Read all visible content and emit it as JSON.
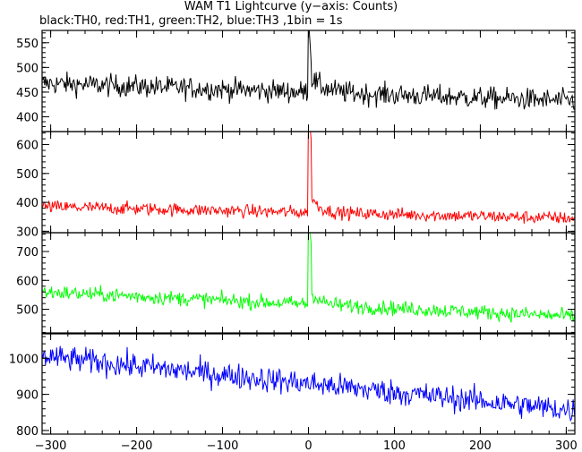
{
  "title": "WAM T1 Lightcurve (y−axis: Counts)",
  "subtitle": "black:TH0, red:TH1, green:TH2, blue:TH3 ,1bin = 1s",
  "chart_data": {
    "type": "line",
    "x_range": [
      -310,
      310
    ],
    "x_ticks": [
      -300,
      -200,
      -100,
      0,
      100,
      200,
      300
    ],
    "x_tick_labels": [
      "−300",
      "−200",
      "−100",
      "0",
      "100",
      "200",
      "300"
    ],
    "bin_seconds": 1,
    "panels": [
      {
        "name": "TH0",
        "color": "#000000",
        "ylim": [
          370,
          575
        ],
        "y_ticks": [
          400,
          450,
          500,
          550
        ],
        "y_tick_labels": [
          "400",
          "450",
          "500",
          "550"
        ],
        "baseline_start": 468,
        "baseline_end": 432,
        "noise": 22,
        "spike_peak": 565,
        "spike_width": 3,
        "spike_bump": 35,
        "spike_decay": 15
      },
      {
        "name": "TH1",
        "color": "#ff0000",
        "ylim": [
          295,
          645
        ],
        "y_ticks": [
          300,
          400,
          500,
          600
        ],
        "y_tick_labels": [
          "300",
          "400",
          "500",
          "600"
        ],
        "baseline_start": 385,
        "baseline_end": 345,
        "noise": 22,
        "spike_peak": 640,
        "spike_width": 3,
        "spike_bump": 75,
        "spike_decay": 10
      },
      {
        "name": "TH2",
        "color": "#00ff00",
        "ylim": [
          415,
          765
        ],
        "y_ticks": [
          500,
          600,
          700
        ],
        "y_tick_labels": [
          "500",
          "600",
          "700"
        ],
        "baseline_start": 560,
        "baseline_end": 475,
        "noise": 25,
        "spike_peak": 760,
        "spike_width": 3,
        "spike_bump": 60,
        "spike_decay": 10
      },
      {
        "name": "TH3",
        "color": "#0000ff",
        "ylim": [
          790,
          1070
        ],
        "y_ticks": [
          800,
          900,
          1000
        ],
        "y_tick_labels": [
          "800",
          "900",
          "1000"
        ],
        "baseline_start": 1005,
        "baseline_end": 855,
        "noise": 35,
        "spike_peak": 0,
        "spike_width": 0,
        "spike_bump": 0,
        "spike_decay": 10
      }
    ]
  }
}
